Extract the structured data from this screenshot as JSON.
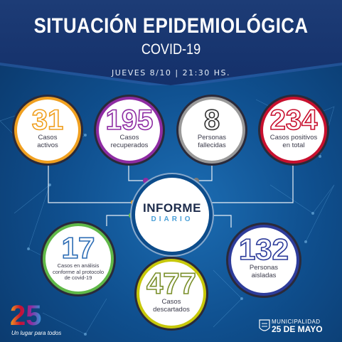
{
  "header": {
    "title": "SITUACIÓN EPIDEMIOLÓGICA",
    "subtitle": "COVID-19",
    "dateline": "JUEVES 8/10 | 21:30 HS."
  },
  "center": {
    "line1": "INFORME",
    "line2": "DIARIO"
  },
  "stats": [
    {
      "value": "31",
      "label1": "Casos",
      "label2": "activos",
      "label3": "",
      "color": "#f0a020"
    },
    {
      "value": "195",
      "label1": "Casos",
      "label2": "recuperados",
      "label3": "",
      "color": "#8e2ca3"
    },
    {
      "value": "8",
      "label1": "Personas",
      "label2": "fallecidas",
      "label3": "",
      "color": "#7a7a7a"
    },
    {
      "value": "234",
      "label1": "Casos positivos",
      "label2": "en total",
      "label3": "",
      "color": "#c8102e"
    },
    {
      "value": "17",
      "label1": "Casos en análisis",
      "label2": "conforme al protocolo",
      "label3": "de covid-19",
      "color": "#5fb848"
    },
    {
      "value": "477",
      "label1": "Casos",
      "label2": "descartados",
      "label3": "",
      "color": "#c7c80a"
    },
    {
      "value": "132",
      "label1": "Personas",
      "label2": "aisladas",
      "label3": "",
      "color": "#2d3c9b"
    }
  ],
  "footer": {
    "logo": "25",
    "slogan": "Un lugar para todos",
    "muni_small": "MUNICIPALIDAD",
    "muni_big": "25 DE MAYO"
  }
}
